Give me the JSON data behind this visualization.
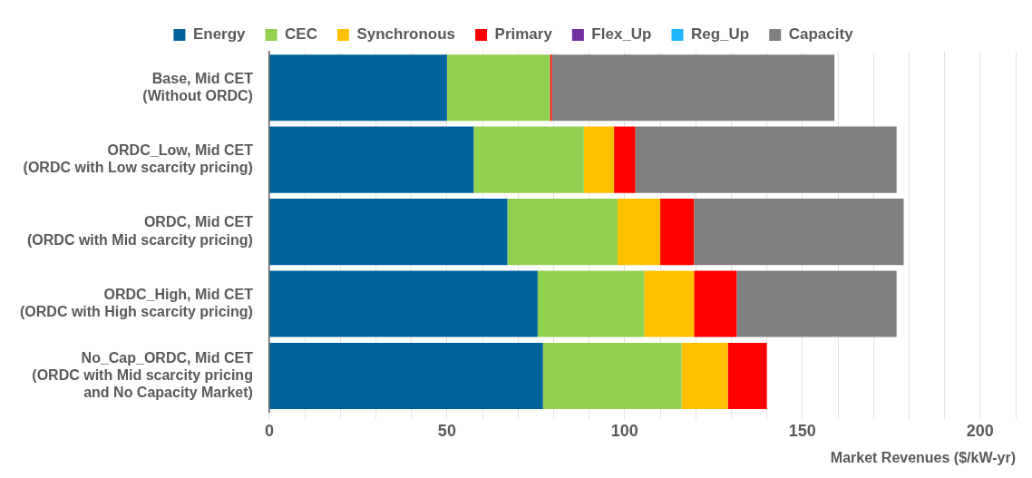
{
  "chart_data": {
    "type": "bar",
    "orientation": "horizontal",
    "stacked": true,
    "xlabel": "Market Revenues ($/kW-yr)",
    "categories": [
      "Base, Mid CET\n(Without ORDC)",
      "ORDC_Low, Mid CET\n(ORDC with Low scarcity pricing)",
      "ORDC, Mid CET\n(ORDC with Mid scarcity pricing)",
      "ORDC_High, Mid CET\n(ORDC with High scarcity pricing)",
      "No_Cap_ORDC, Mid CET\n(ORDC with Mid scarcity pricing\nand No Capacity Market)"
    ],
    "series": [
      {
        "name": "Energy",
        "color": "#00629b",
        "values": [
          50,
          57.5,
          67,
          75.5,
          77
        ]
      },
      {
        "name": "CEC",
        "color": "#92d050",
        "values": [
          29,
          31,
          31,
          30,
          39
        ]
      },
      {
        "name": "Synchronous",
        "color": "#ffc000",
        "values": [
          0,
          8.5,
          12,
          14,
          13
        ]
      },
      {
        "name": "Primary",
        "color": "#ff0000",
        "values": [
          0.5,
          6,
          9.5,
          12,
          11
        ]
      },
      {
        "name": "Flex_Up",
        "color": "#7030a0",
        "values": [
          0,
          0,
          0,
          0,
          0
        ]
      },
      {
        "name": "Reg_Up",
        "color": "#1fb5ff",
        "values": [
          0,
          0,
          0,
          0,
          0
        ]
      },
      {
        "name": "Capacity",
        "color": "#808080",
        "values": [
          79.5,
          73.5,
          59,
          45,
          0
        ]
      }
    ],
    "xlim": [
      0,
      210
    ],
    "xticks": [
      0,
      {
        "value": 10,
        "label": null
      },
      {
        "value": 20,
        "label": null
      },
      {
        "value": 30,
        "label": null
      },
      {
        "value": 40,
        "label": null
      },
      50,
      {
        "value": 60,
        "label": null
      },
      {
        "value": 70,
        "label": null
      },
      {
        "value": 80,
        "label": null
      },
      {
        "value": 90,
        "label": null
      },
      100,
      {
        "value": 110,
        "label": null
      },
      {
        "value": 120,
        "label": null
      },
      {
        "value": 130,
        "label": null
      },
      {
        "value": 140,
        "label": null
      },
      150,
      {
        "value": 160,
        "label": null
      },
      {
        "value": 170,
        "label": null
      },
      {
        "value": 180,
        "label": null
      },
      {
        "value": 190,
        "label": null
      },
      200,
      {
        "value": 210,
        "label": null
      }
    ],
    "grid": "x",
    "legend": "top"
  }
}
